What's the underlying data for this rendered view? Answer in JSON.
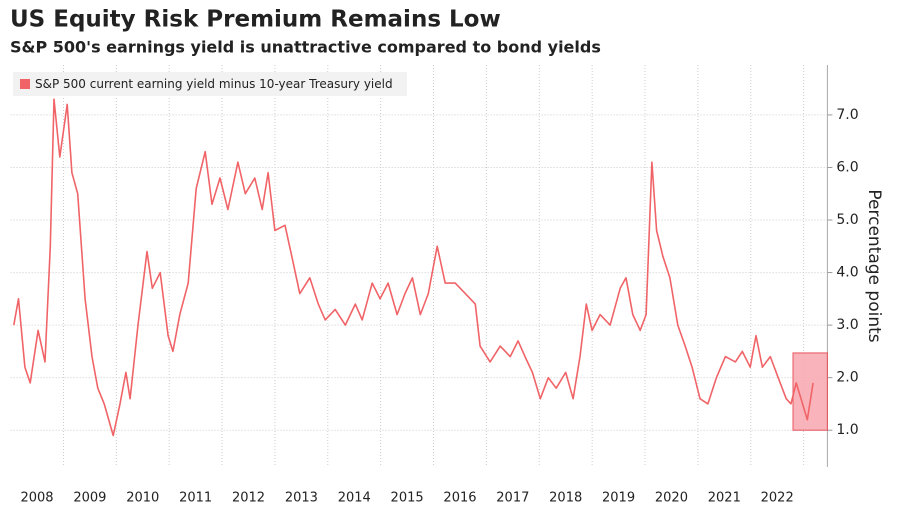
{
  "chart_data": {
    "type": "line",
    "title": "US Equity Risk Premium Remains Low",
    "subtitle": "S&P 500's earnings yield is unattractive compared to bond yields",
    "y_label": "Percentage points",
    "x": [
      2008.06,
      2008.15,
      2008.27,
      2008.37,
      2008.52,
      2008.65,
      2008.75,
      2008.82,
      2008.93,
      2009.07,
      2009.16,
      2009.27,
      2009.41,
      2009.54,
      2009.65,
      2009.77,
      2009.94,
      2010.07,
      2010.18,
      2010.26,
      2010.41,
      2010.58,
      2010.68,
      2010.83,
      2010.98,
      2011.07,
      2011.2,
      2011.36,
      2011.51,
      2011.68,
      2011.81,
      2011.96,
      2012.11,
      2012.3,
      2012.44,
      2012.62,
      2012.76,
      2012.87,
      2013.0,
      2013.19,
      2013.32,
      2013.47,
      2013.66,
      2013.82,
      2013.95,
      2014.14,
      2014.33,
      2014.52,
      2014.65,
      2014.84,
      2014.99,
      2015.14,
      2015.31,
      2015.46,
      2015.6,
      2015.75,
      2015.9,
      2016.07,
      2016.22,
      2016.41,
      2016.6,
      2016.79,
      2016.88,
      2017.07,
      2017.26,
      2017.45,
      2017.6,
      2017.73,
      2017.87,
      2018.02,
      2018.17,
      2018.32,
      2018.5,
      2018.64,
      2018.77,
      2018.89,
      2019.0,
      2019.15,
      2019.34,
      2019.53,
      2019.64,
      2019.77,
      2019.91,
      2020.02,
      2020.13,
      2020.22,
      2020.34,
      2020.47,
      2020.62,
      2020.76,
      2020.89,
      2021.04,
      2021.19,
      2021.35,
      2021.52,
      2021.71,
      2021.84,
      2021.99,
      2022.1,
      2022.22,
      2022.37,
      2022.52,
      2022.67,
      2022.76,
      2022.86,
      2022.95,
      2023.07,
      2023.18
    ],
    "series": [
      {
        "name": "S&P 500 current earning yield minus 10-year Treasury yield",
        "color": "#f06468",
        "values": [
          3.0,
          3.5,
          2.2,
          1.9,
          2.9,
          2.3,
          4.5,
          7.3,
          6.2,
          7.2,
          5.9,
          5.5,
          3.5,
          2.4,
          1.8,
          1.5,
          0.9,
          1.5,
          2.1,
          1.6,
          3.0,
          4.4,
          3.7,
          4.0,
          2.8,
          2.5,
          3.2,
          3.8,
          5.6,
          6.3,
          5.3,
          5.8,
          5.2,
          6.1,
          5.5,
          5.8,
          5.2,
          5.9,
          4.8,
          4.9,
          4.3,
          3.6,
          3.9,
          3.4,
          3.1,
          3.3,
          3.0,
          3.4,
          3.1,
          3.8,
          3.5,
          3.8,
          3.2,
          3.6,
          3.9,
          3.2,
          3.6,
          4.5,
          3.8,
          3.8,
          3.6,
          3.4,
          2.6,
          2.3,
          2.6,
          2.4,
          2.7,
          2.4,
          2.1,
          1.6,
          2.0,
          1.8,
          2.1,
          1.6,
          2.4,
          3.4,
          2.9,
          3.2,
          3.0,
          3.7,
          3.9,
          3.2,
          2.9,
          3.2,
          6.1,
          4.8,
          4.3,
          3.9,
          3.0,
          2.6,
          2.2,
          1.6,
          1.5,
          2.0,
          2.4,
          2.3,
          2.5,
          2.2,
          2.8,
          2.2,
          2.4,
          2.0,
          1.6,
          1.5,
          1.9,
          1.6,
          1.2,
          1.9
        ]
      }
    ],
    "xlim": [
      2008,
      2023.45
    ],
    "xticks": [
      {
        "value": 2008.5,
        "label": "2008"
      },
      {
        "value": 2009.5,
        "label": "2009"
      },
      {
        "value": 2010.5,
        "label": "2010"
      },
      {
        "value": 2011.5,
        "label": "2011"
      },
      {
        "value": 2012.5,
        "label": "2012"
      },
      {
        "value": 2013.5,
        "label": "2013"
      },
      {
        "value": 2014.5,
        "label": "2014"
      },
      {
        "value": 2015.5,
        "label": "2015"
      },
      {
        "value": 2016.5,
        "label": "2016"
      },
      {
        "value": 2017.5,
        "label": "2017"
      },
      {
        "value": 2018.5,
        "label": "2018"
      },
      {
        "value": 2019.5,
        "label": "2019"
      },
      {
        "value": 2020.5,
        "label": "2020"
      },
      {
        "value": 2021.5,
        "label": "2021"
      },
      {
        "value": 2022.5,
        "label": "2022"
      }
    ],
    "xgrid": [
      2009,
      2010,
      2011,
      2012,
      2013,
      2014,
      2015,
      2016,
      2017,
      2018,
      2019,
      2020,
      2021,
      2022,
      2023
    ],
    "ylim": [
      0.3,
      7.95
    ],
    "yticks": [
      {
        "value": 1,
        "label": "1.0"
      },
      {
        "value": 2,
        "label": "2.0"
      },
      {
        "value": 3,
        "label": "3.0"
      },
      {
        "value": 4,
        "label": "4.0"
      },
      {
        "value": 5,
        "label": "5.0"
      },
      {
        "value": 6,
        "label": "6.0"
      },
      {
        "value": 7,
        "label": "7.0"
      }
    ],
    "grid": true,
    "legend": "top-left",
    "highlight": {
      "x": [
        2022.8,
        2023.45
      ],
      "y": [
        1.0,
        2.47
      ],
      "color": "#f7a8ae",
      "edge": "#e8505a"
    }
  }
}
